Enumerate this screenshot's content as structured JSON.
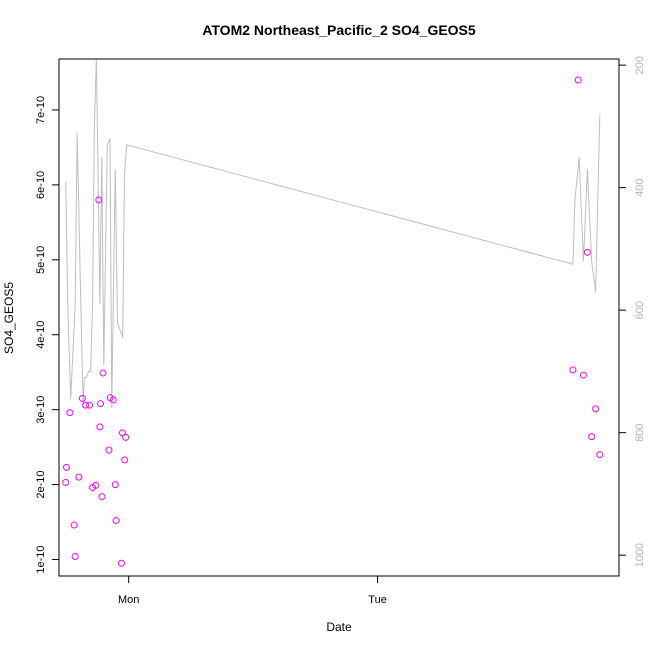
{
  "chart_data": {
    "type": "scatter",
    "title": "ATOM2 Northeast_Pacific_2 SO4_GEOS5",
    "xlabel": "Date",
    "ylabel": "SO4_GEOS5",
    "x_ticks": [
      {
        "value": 0.0,
        "label": "Mon"
      },
      {
        "value": 1.0,
        "label": "Tue"
      }
    ],
    "xlim": [
      -0.28,
      1.97
    ],
    "ylim": [
      7.8e-11,
      7.68e-10
    ],
    "y_ticks": [
      {
        "value": 1e-10,
        "label": "1e-10"
      },
      {
        "value": 2e-10,
        "label": "2e-10"
      },
      {
        "value": 3e-10,
        "label": "3e-10"
      },
      {
        "value": 4e-10,
        "label": "4e-10"
      },
      {
        "value": 5e-10,
        "label": "5e-10"
      },
      {
        "value": 6e-10,
        "label": "6e-10"
      },
      {
        "value": 7e-10,
        "label": "7e-10"
      }
    ],
    "y2lim": [
      190,
      1034
    ],
    "y2_reversed": true,
    "y2_ticks": [
      {
        "value": 200,
        "label": "200"
      },
      {
        "value": 400,
        "label": "400"
      },
      {
        "value": 600,
        "label": "600"
      },
      {
        "value": 800,
        "label": "800"
      },
      {
        "value": 1000,
        "label": "1000"
      }
    ],
    "grid": false,
    "series": [
      {
        "kind": "points",
        "color": "#ff00ff",
        "points": [
          {
            "x": -0.253,
            "y": 2.03e-10
          },
          {
            "x": -0.25,
            "y": 2.23e-10
          },
          {
            "x": -0.236,
            "y": 2.96e-10
          },
          {
            "x": -0.219,
            "y": 1.46e-10
          },
          {
            "x": -0.215,
            "y": 1.04e-10
          },
          {
            "x": -0.2,
            "y": 2.1e-10
          },
          {
            "x": -0.186,
            "y": 3.15e-10
          },
          {
            "x": -0.173,
            "y": 3.06e-10
          },
          {
            "x": -0.157,
            "y": 3.06e-10
          },
          {
            "x": -0.145,
            "y": 1.96e-10
          },
          {
            "x": -0.132,
            "y": 1.99e-10
          },
          {
            "x": -0.12,
            "y": 5.8e-10
          },
          {
            "x": -0.116,
            "y": 2.77e-10
          },
          {
            "x": -0.113,
            "y": 3.08e-10
          },
          {
            "x": -0.107,
            "y": 1.84e-10
          },
          {
            "x": -0.103,
            "y": 3.49e-10
          },
          {
            "x": -0.079,
            "y": 2.46e-10
          },
          {
            "x": -0.074,
            "y": 3.16e-10
          },
          {
            "x": -0.062,
            "y": 3.13e-10
          },
          {
            "x": -0.054,
            "y": 2e-10
          },
          {
            "x": -0.05,
            "y": 1.52e-10
          },
          {
            "x": -0.029,
            "y": 9.5e-11
          },
          {
            "x": -0.025,
            "y": 2.69e-10
          },
          {
            "x": -0.016,
            "y": 2.33e-10
          },
          {
            "x": -0.012,
            "y": 2.63e-10
          },
          {
            "x": 1.785,
            "y": 3.53e-10
          },
          {
            "x": 1.806,
            "y": 7.4e-10
          },
          {
            "x": 1.827,
            "y": 3.46e-10
          },
          {
            "x": 1.843,
            "y": 5.1e-10
          },
          {
            "x": 1.86,
            "y": 2.64e-10
          },
          {
            "x": 1.876,
            "y": 3.01e-10
          },
          {
            "x": 1.893,
            "y": 2.4e-10
          }
        ]
      },
      {
        "kind": "line",
        "axis": "right",
        "color": "#bebebe",
        "points": [
          {
            "x": -0.253,
            "y": 390
          },
          {
            "x": -0.245,
            "y": 590
          },
          {
            "x": -0.233,
            "y": 745
          },
          {
            "x": -0.215,
            "y": 590
          },
          {
            "x": -0.207,
            "y": 310
          },
          {
            "x": -0.195,
            "y": 540
          },
          {
            "x": -0.183,
            "y": 760
          },
          {
            "x": -0.178,
            "y": 710
          },
          {
            "x": -0.17,
            "y": 710
          },
          {
            "x": -0.161,
            "y": 700
          },
          {
            "x": -0.153,
            "y": 700
          },
          {
            "x": -0.145,
            "y": 590
          },
          {
            "x": -0.138,
            "y": 300
          },
          {
            "x": -0.13,
            "y": 190
          },
          {
            "x": -0.124,
            "y": 350
          },
          {
            "x": -0.116,
            "y": 590
          },
          {
            "x": -0.108,
            "y": 350
          },
          {
            "x": -0.1,
            "y": 690
          },
          {
            "x": -0.086,
            "y": 330
          },
          {
            "x": -0.075,
            "y": 320
          },
          {
            "x": -0.068,
            "y": 760
          },
          {
            "x": -0.054,
            "y": 370
          },
          {
            "x": -0.045,
            "y": 620
          },
          {
            "x": -0.024,
            "y": 645
          },
          {
            "x": -0.017,
            "y": 380
          },
          {
            "x": -0.008,
            "y": 330
          },
          {
            "x": 1.785,
            "y": 525
          },
          {
            "x": 1.793,
            "y": 420
          },
          {
            "x": 1.81,
            "y": 350
          },
          {
            "x": 1.827,
            "y": 520
          },
          {
            "x": 1.843,
            "y": 370
          },
          {
            "x": 1.86,
            "y": 520
          },
          {
            "x": 1.876,
            "y": 570
          },
          {
            "x": 1.893,
            "y": 280
          }
        ]
      }
    ]
  }
}
